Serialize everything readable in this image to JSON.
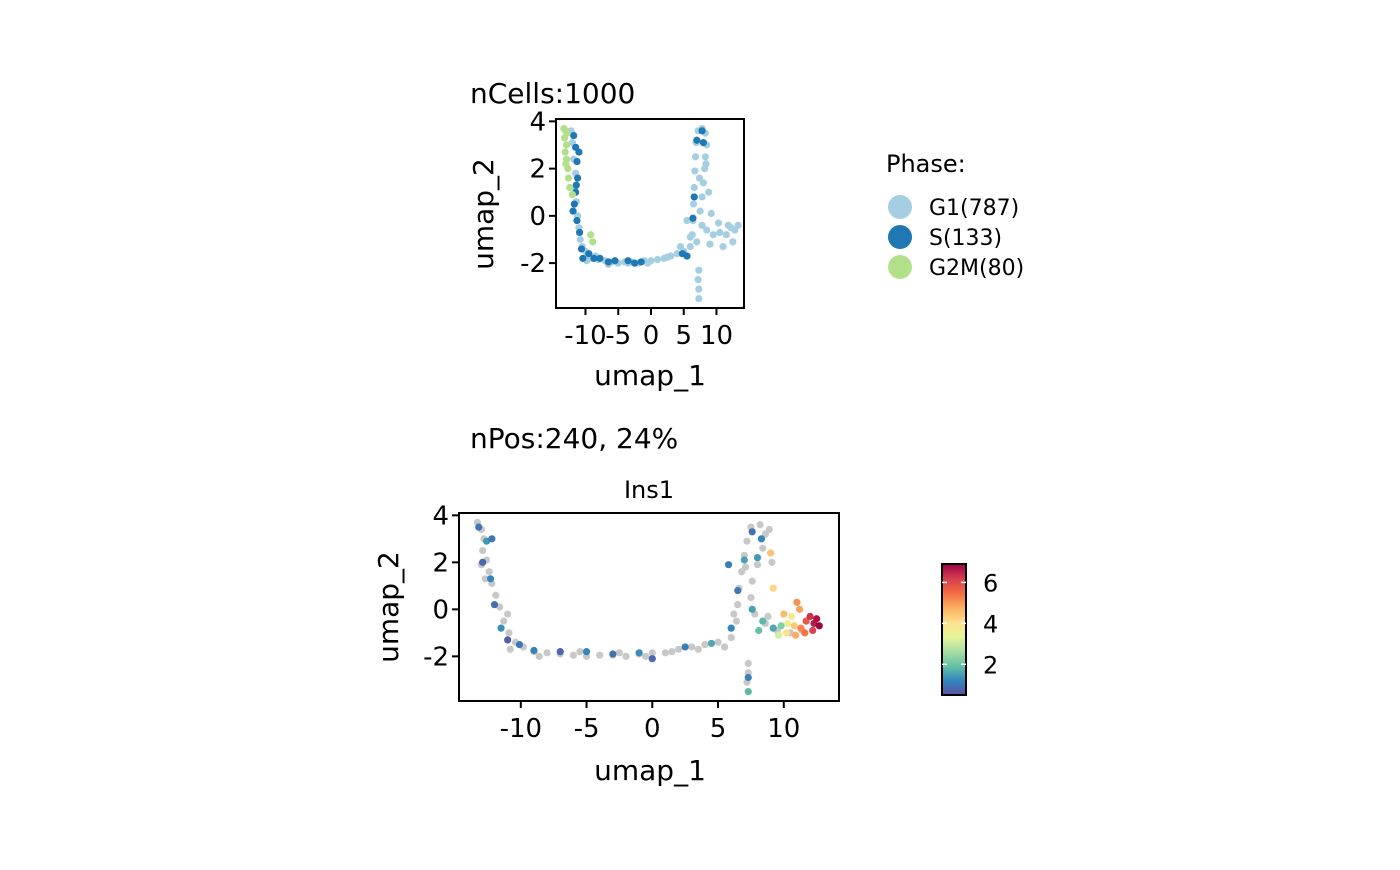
{
  "colors": {
    "background": "#ffffff",
    "axis": "#000000",
    "negative_cell": "#c8c8c8",
    "phase_G1": "#a6cee3",
    "phase_S": "#1f78b4",
    "phase_G2M": "#b2df8a",
    "spectral": [
      "#5e4fa2",
      "#3288bd",
      "#66c2a5",
      "#abdda4",
      "#e6f598",
      "#fee08b",
      "#fdae61",
      "#f46d43",
      "#d53e4f",
      "#9e0142"
    ]
  },
  "chart_data": [
    {
      "id": "phase",
      "type": "scatter",
      "title": "nCells:1000",
      "subtitle": "",
      "xlabel": "umap_1",
      "ylabel": "umap_2",
      "xlim": [
        -14.5,
        14.2
      ],
      "ylim": [
        -3.9,
        4.1
      ],
      "xticks": [
        -10,
        -5,
        0,
        5,
        10
      ],
      "xtick_labels": [
        "-10",
        "-5",
        "0",
        "5",
        "10"
      ],
      "yticks": [
        -2,
        0,
        2,
        4
      ],
      "ytick_labels": [
        "-2",
        "0",
        "2",
        "4"
      ],
      "grid": false,
      "legend": {
        "title": "Phase:",
        "placement": "right",
        "entries": [
          {
            "label": "G1(787)",
            "key": "G1",
            "color": "#a6cee3"
          },
          {
            "label": "S(133)",
            "key": "S",
            "color": "#1f78b4"
          },
          {
            "label": "G2M(80)",
            "key": "G2M",
            "color": "#b2df8a"
          }
        ]
      },
      "series": [
        {
          "name": "G1",
          "count": 787,
          "color": "#a6cee3",
          "points": [
            [
              -12.2,
              3.6
            ],
            [
              -12.0,
              3.1
            ],
            [
              -11.8,
              2.4
            ],
            [
              -11.5,
              1.8
            ],
            [
              -11.6,
              1.2
            ],
            [
              -11.4,
              0.6
            ],
            [
              -11.2,
              0.0
            ],
            [
              -11.0,
              -0.5
            ],
            [
              -10.8,
              -1.0
            ],
            [
              -10.5,
              -1.3
            ],
            [
              -10.0,
              -1.5
            ],
            [
              -9.6,
              -1.7
            ],
            [
              -9.0,
              -1.8
            ],
            [
              -8.0,
              -1.85
            ],
            [
              -7.0,
              -1.9
            ],
            [
              -6.0,
              -1.95
            ],
            [
              -5.0,
              -2.0
            ],
            [
              -4.0,
              -1.95
            ],
            [
              -3.0,
              -1.95
            ],
            [
              -2.0,
              -2.0
            ],
            [
              -1.0,
              -1.9
            ],
            [
              0.0,
              -1.9
            ],
            [
              1.0,
              -1.85
            ],
            [
              2.0,
              -1.8
            ],
            [
              3.0,
              -1.7
            ],
            [
              4.0,
              -1.6
            ],
            [
              5.0,
              -1.5
            ],
            [
              6.0,
              -1.3
            ],
            [
              6.3,
              -0.8
            ],
            [
              6.4,
              -0.2
            ],
            [
              6.5,
              0.5
            ],
            [
              6.6,
              1.2
            ],
            [
              6.7,
              1.9
            ],
            [
              6.8,
              2.5
            ],
            [
              6.9,
              3.1
            ],
            [
              7.2,
              3.6
            ],
            [
              7.8,
              3.7
            ],
            [
              8.3,
              3.5
            ],
            [
              8.5,
              3.0
            ],
            [
              8.3,
              2.5
            ],
            [
              8.2,
              2.0
            ],
            [
              8.0,
              1.4
            ],
            [
              7.8,
              0.8
            ],
            [
              7.5,
              0.2
            ],
            [
              7.8,
              -0.4
            ],
            [
              8.5,
              -0.6
            ],
            [
              9.5,
              -0.8
            ],
            [
              10.5,
              -0.7
            ],
            [
              11.5,
              -0.8
            ],
            [
              12.2,
              -0.5
            ],
            [
              12.8,
              -0.6
            ],
            [
              13.3,
              -0.4
            ],
            [
              12.5,
              -1.1
            ],
            [
              11.0,
              -1.3
            ],
            [
              9.0,
              -1.2
            ],
            [
              7.0,
              -1.1
            ],
            [
              6.0,
              -0.9
            ],
            [
              7.3,
              -2.3
            ],
            [
              7.2,
              -2.7
            ],
            [
              7.3,
              -3.1
            ],
            [
              7.3,
              -3.5
            ],
            [
              5.5,
              -0.2
            ],
            [
              8.8,
              1.0
            ],
            [
              9.2,
              0.1
            ],
            [
              10.3,
              -0.3
            ],
            [
              -9.8,
              -1.9
            ],
            [
              -8.5,
              -1.7
            ],
            [
              -6.5,
              -2.05
            ],
            [
              -3.5,
              -2.0
            ],
            [
              -0.5,
              -2.0
            ],
            [
              2.5,
              -1.75
            ],
            [
              4.5,
              -1.3
            ],
            [
              8.4,
              2.2
            ],
            [
              7.4,
              1.6
            ],
            [
              11.8,
              -0.4
            ]
          ]
        },
        {
          "name": "S",
          "count": 133,
          "color": "#1f78b4",
          "points": [
            [
              -11.8,
              3.4
            ],
            [
              -11.5,
              2.9
            ],
            [
              -11.3,
              2.3
            ],
            [
              -11.2,
              1.6
            ],
            [
              -11.5,
              1.0
            ],
            [
              -11.7,
              0.5
            ],
            [
              -11.3,
              -0.2
            ],
            [
              -10.9,
              -0.7
            ],
            [
              -10.6,
              -1.4
            ],
            [
              -9.5,
              -1.6
            ],
            [
              -8.7,
              -1.8
            ],
            [
              -7.8,
              -1.8
            ],
            [
              -6.5,
              -1.95
            ],
            [
              -5.5,
              -1.9
            ],
            [
              -3.5,
              -1.9
            ],
            [
              -2.5,
              -2.0
            ],
            [
              -1.5,
              -1.95
            ],
            [
              6.4,
              -0.1
            ],
            [
              6.6,
              0.8
            ],
            [
              7.0,
              3.2
            ],
            [
              7.8,
              3.6
            ],
            [
              8.0,
              3.1
            ],
            [
              -11.9,
              0.2
            ],
            [
              -11.4,
              1.3
            ],
            [
              -10.4,
              -1.8
            ],
            [
              5.5,
              -1.7
            ],
            [
              4.8,
              -1.6
            ],
            [
              -11.0,
              2.7
            ]
          ]
        },
        {
          "name": "G2M",
          "count": 80,
          "color": "#b2df8a",
          "points": [
            [
              -13.3,
              3.7
            ],
            [
              -13.0,
              3.6
            ],
            [
              -13.2,
              3.3
            ],
            [
              -12.9,
              3.0
            ],
            [
              -13.1,
              2.7
            ],
            [
              -12.9,
              2.4
            ],
            [
              -12.7,
              2.0
            ],
            [
              -12.6,
              1.6
            ],
            [
              -12.4,
              1.2
            ],
            [
              -12.0,
              0.9
            ],
            [
              -9.2,
              -0.8
            ],
            [
              -8.9,
              -1.1
            ],
            [
              -12.8,
              3.5
            ],
            [
              -13.0,
              2.2
            ]
          ]
        }
      ]
    },
    {
      "id": "ins1",
      "type": "scatter",
      "title": "nPos:240, 24%",
      "subtitle": "Ins1",
      "xlabel": "umap_1",
      "ylabel": "umap_2",
      "xlim": [
        -14.7,
        14.2
      ],
      "ylim": [
        -3.9,
        4.1
      ],
      "xticks": [
        -10,
        -5,
        0,
        5,
        10
      ],
      "xtick_labels": [
        "-10",
        "-5",
        "0",
        "5",
        "10"
      ],
      "yticks": [
        -2,
        0,
        2,
        4
      ],
      "ytick_labels": [
        "-2",
        "0",
        "2",
        "4"
      ],
      "grid": false,
      "colorbar": {
        "placement": "right",
        "range": [
          0.5,
          6.9
        ],
        "ticks": [
          2,
          4,
          6
        ],
        "tick_labels": [
          "2",
          "4",
          "6"
        ]
      },
      "negative_points": [
        [
          -13.3,
          3.7
        ],
        [
          -13.0,
          3.4
        ],
        [
          -12.8,
          3.0
        ],
        [
          -12.9,
          2.5
        ],
        [
          -12.6,
          2.1
        ],
        [
          -12.4,
          1.6
        ],
        [
          -12.2,
          1.1
        ],
        [
          -11.9,
          0.6
        ],
        [
          -11.6,
          0.1
        ],
        [
          -11.3,
          -0.5
        ],
        [
          -10.9,
          -1.0
        ],
        [
          -10.4,
          -1.4
        ],
        [
          -9.8,
          -1.6
        ],
        [
          -9.0,
          -1.8
        ],
        [
          -8.0,
          -1.85
        ],
        [
          -7.0,
          -1.9
        ],
        [
          -6.0,
          -1.95
        ],
        [
          -5.0,
          -2.0
        ],
        [
          -4.0,
          -1.95
        ],
        [
          -3.0,
          -1.95
        ],
        [
          -2.0,
          -2.0
        ],
        [
          -1.0,
          -1.9
        ],
        [
          0.0,
          -1.85
        ],
        [
          1.0,
          -1.85
        ],
        [
          2.0,
          -1.7
        ],
        [
          3.0,
          -1.6
        ],
        [
          4.0,
          -1.5
        ],
        [
          5.0,
          -1.4
        ],
        [
          6.0,
          -1.2
        ],
        [
          6.4,
          -0.5
        ],
        [
          6.5,
          0.2
        ],
        [
          6.6,
          0.9
        ],
        [
          6.8,
          1.6
        ],
        [
          7.0,
          2.3
        ],
        [
          7.2,
          2.9
        ],
        [
          7.5,
          3.5
        ],
        [
          8.2,
          3.6
        ],
        [
          8.6,
          3.2
        ],
        [
          8.4,
          2.6
        ],
        [
          8.0,
          1.9
        ],
        [
          7.6,
          1.2
        ],
        [
          7.5,
          0.5
        ],
        [
          7.8,
          -0.2
        ],
        [
          8.6,
          -0.6
        ],
        [
          9.5,
          -0.9
        ],
        [
          10.5,
          -1.0
        ],
        [
          11.4,
          -0.9
        ],
        [
          7.3,
          -2.3
        ],
        [
          7.3,
          -2.7
        ],
        [
          7.2,
          -3.1
        ],
        [
          -13.0,
          1.9
        ],
        [
          -12.7,
          1.3
        ],
        [
          -11.0,
          -0.2
        ],
        [
          -10.8,
          -1.7
        ],
        [
          -8.6,
          -2.0
        ],
        [
          -5.5,
          -1.8
        ],
        [
          -2.5,
          -1.85
        ],
        [
          -0.5,
          -2.0
        ],
        [
          1.5,
          -1.8
        ],
        [
          3.5,
          -1.7
        ],
        [
          5.5,
          -1.6
        ],
        [
          6.2,
          -0.2
        ],
        [
          7.1,
          1.8
        ],
        [
          8.9,
          3.4
        ],
        [
          9.1,
          2.0
        ],
        [
          8.8,
          -0.3
        ]
      ],
      "positive_points": [
        [
          -13.2,
          3.5,
          1.0
        ],
        [
          -12.6,
          2.9,
          1.4
        ],
        [
          -12.9,
          2.0,
          0.8
        ],
        [
          -12.3,
          1.3,
          1.2
        ],
        [
          -12.0,
          0.2,
          0.9
        ],
        [
          -11.5,
          -0.8,
          1.3
        ],
        [
          -11.0,
          -1.3,
          0.7
        ],
        [
          -10.1,
          -1.5,
          1.0
        ],
        [
          -9.0,
          -1.75,
          1.1
        ],
        [
          -7.0,
          -1.8,
          0.8
        ],
        [
          -5.0,
          -1.8,
          1.2
        ],
        [
          -3.0,
          -1.9,
          0.9
        ],
        [
          -1.0,
          -1.85,
          1.3
        ],
        [
          0.0,
          -2.1,
          0.8
        ],
        [
          2.5,
          -1.6,
          1.1
        ],
        [
          4.5,
          -1.45,
          1.6
        ],
        [
          6.0,
          -0.8,
          1.2
        ],
        [
          6.5,
          0.8,
          1.0
        ],
        [
          7.0,
          2.1,
          1.5
        ],
        [
          7.6,
          3.3,
          0.9
        ],
        [
          8.3,
          3.0,
          1.2
        ],
        [
          8.0,
          2.2,
          1.4
        ],
        [
          9.0,
          2.4,
          4.5
        ],
        [
          9.2,
          0.9,
          4.2
        ],
        [
          8.4,
          -0.5,
          1.8
        ],
        [
          9.2,
          -0.8,
          1.6
        ],
        [
          9.8,
          -0.7,
          2.2
        ],
        [
          10.3,
          -0.6,
          3.5
        ],
        [
          10.8,
          -0.7,
          4.4
        ],
        [
          11.3,
          -0.8,
          5.2
        ],
        [
          11.7,
          -0.5,
          5.8
        ],
        [
          12.0,
          -0.3,
          6.3
        ],
        [
          12.3,
          -0.6,
          6.6
        ],
        [
          12.5,
          -0.4,
          6.7
        ],
        [
          12.2,
          -0.9,
          6.1
        ],
        [
          11.6,
          -1.0,
          5.4
        ],
        [
          10.9,
          -1.1,
          4.8
        ],
        [
          10.2,
          -1.0,
          4.0
        ],
        [
          9.6,
          -1.1,
          3.1
        ],
        [
          11.0,
          0.3,
          5.1
        ],
        [
          11.2,
          0.0,
          4.9
        ],
        [
          10.6,
          -0.3,
          3.8
        ],
        [
          7.3,
          -3.5,
          1.8
        ],
        [
          7.3,
          -2.9,
          1.1
        ],
        [
          5.8,
          1.9,
          1.1
        ],
        [
          7.6,
          0.0,
          1.5
        ],
        [
          -12.2,
          3.0,
          1.0
        ],
        [
          8.1,
          -0.9,
          1.9
        ],
        [
          10.0,
          -0.2,
          4.6
        ],
        [
          12.7,
          -0.7,
          6.9
        ]
      ]
    }
  ]
}
